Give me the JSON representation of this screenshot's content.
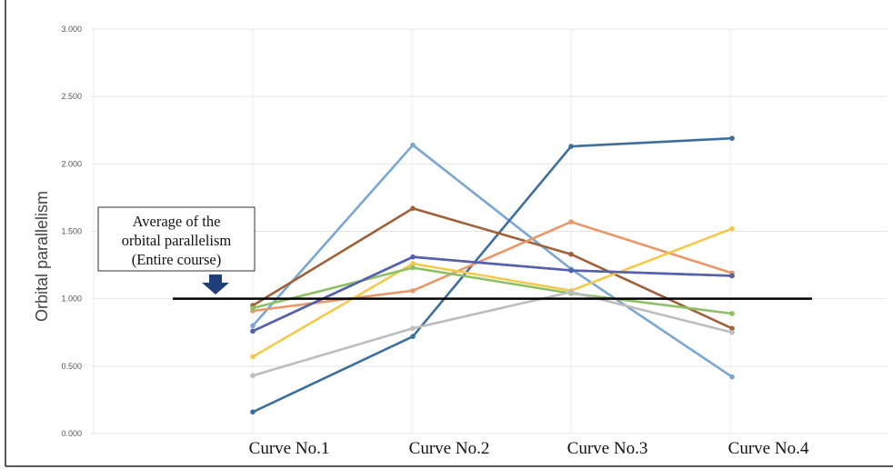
{
  "chart_data": {
    "type": "line",
    "title": "",
    "xlabel": "",
    "ylabel": "Orbital parallelism",
    "categories": [
      "Curve No.1",
      "Curve No.2",
      "Curve No.3",
      "Curve No.4"
    ],
    "ylim": [
      0,
      3
    ],
    "yticks": [
      "0.000",
      "0.500",
      "1.000",
      "1.500",
      "2.000",
      "2.500",
      "3.000"
    ],
    "grid": true,
    "series": [
      {
        "color": "#7aa6d3",
        "values": [
          0.8,
          2.14,
          1.22,
          0.42
        ]
      },
      {
        "color": "#3e6e9c",
        "values": [
          0.16,
          0.72,
          2.13,
          2.19
        ]
      },
      {
        "color": "#a0603a",
        "values": [
          0.95,
          1.67,
          1.33,
          0.78
        ]
      },
      {
        "color": "#e8976a",
        "values": [
          0.91,
          1.06,
          1.57,
          1.19
        ]
      },
      {
        "color": "#d94040",
        "values": [
          0.76,
          1.31,
          1.21,
          1.17
        ]
      },
      {
        "color": "#f2c94c",
        "values": [
          0.57,
          1.26,
          1.06,
          1.52
        ]
      },
      {
        "color": "#8cc063",
        "values": [
          0.93,
          1.23,
          1.04,
          0.89
        ]
      },
      {
        "color": "#bdbdbd",
        "values": [
          0.43,
          0.78,
          1.05,
          0.75
        ]
      },
      {
        "color": "#5063b0",
        "values": [
          0.76,
          1.31,
          1.21,
          1.17
        ]
      }
    ],
    "reference_line": {
      "value": 1.0,
      "color": "#000000"
    },
    "annotation": {
      "lines": [
        "Average of the",
        "orbital parallelism",
        "(Entire course)"
      ],
      "arrow_color": "#1f3f7a"
    }
  }
}
